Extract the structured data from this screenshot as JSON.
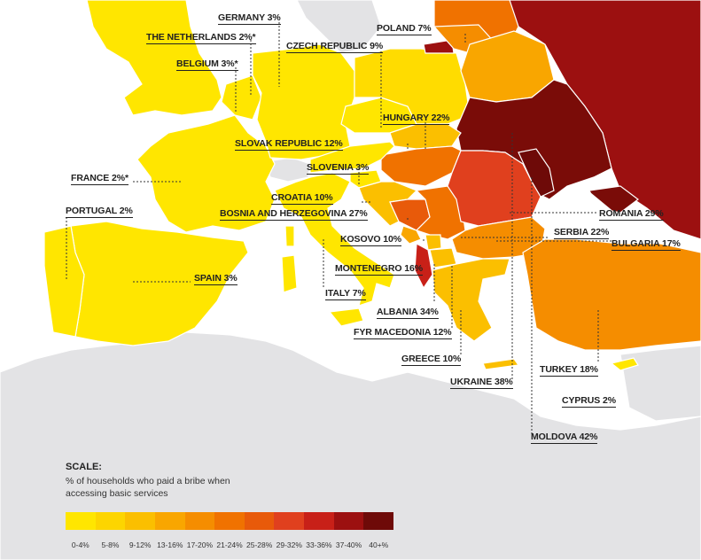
{
  "labels": {
    "germany": "GERMANY 3%",
    "netherlands": "THE NETHERLANDS 2%*",
    "poland": "POLAND 7%",
    "czech": "CZECH REPUBLIC 9%",
    "belgium": "BELGIUM 3%*",
    "hungary": "HUNGARY 22%",
    "slovak": "SLOVAK REPUBLIC 12%",
    "slovenia": "SLOVENIA 3%",
    "france": "FRANCE 2%*",
    "croatia": "CROATIA 10%",
    "portugal": "PORTUGAL 2%",
    "bosnia": "BOSNIA AND HERZEGOVINA 27%",
    "romania": "ROMANIA 29%",
    "serbia": "SERBIA 22%",
    "kosovo": "KOSOVO 10%",
    "bulgaria": "BULGARIA 17%",
    "montenegro": "MONTENEGRO 16%",
    "spain": "SPAIN 3%",
    "italy": "ITALY 7%",
    "albania": "ALBANIA 34%",
    "fyrom": "FYR MACEDONIA 12%",
    "greece": "GREECE 10%",
    "ukraine": "UKRAINE 38%",
    "turkey": "TURKEY 18%",
    "cyprus": "CYPRUS 2%",
    "moldova": "MOLDOVA 42%"
  },
  "legend": {
    "title": "SCALE:",
    "description": "% of households who paid a bribe when accessing basic services",
    "ticks": [
      "0-4%",
      "5-8%",
      "9-12%",
      "13-16%",
      "17-20%",
      "21-24%",
      "25-28%",
      "29-32%",
      "33-36%",
      "37-40%",
      "40+%"
    ],
    "colors": [
      "#ffe600",
      "#fdd500",
      "#fbbf00",
      "#f9a600",
      "#f58d00",
      "#f07200",
      "#e85a0a",
      "#e0401e",
      "#c82018",
      "#9c1010",
      "#6e0a08"
    ]
  },
  "colors": {
    "sea": "#ffffff",
    "land": "#e3e3e5",
    "no_data": "#dedee0"
  }
}
